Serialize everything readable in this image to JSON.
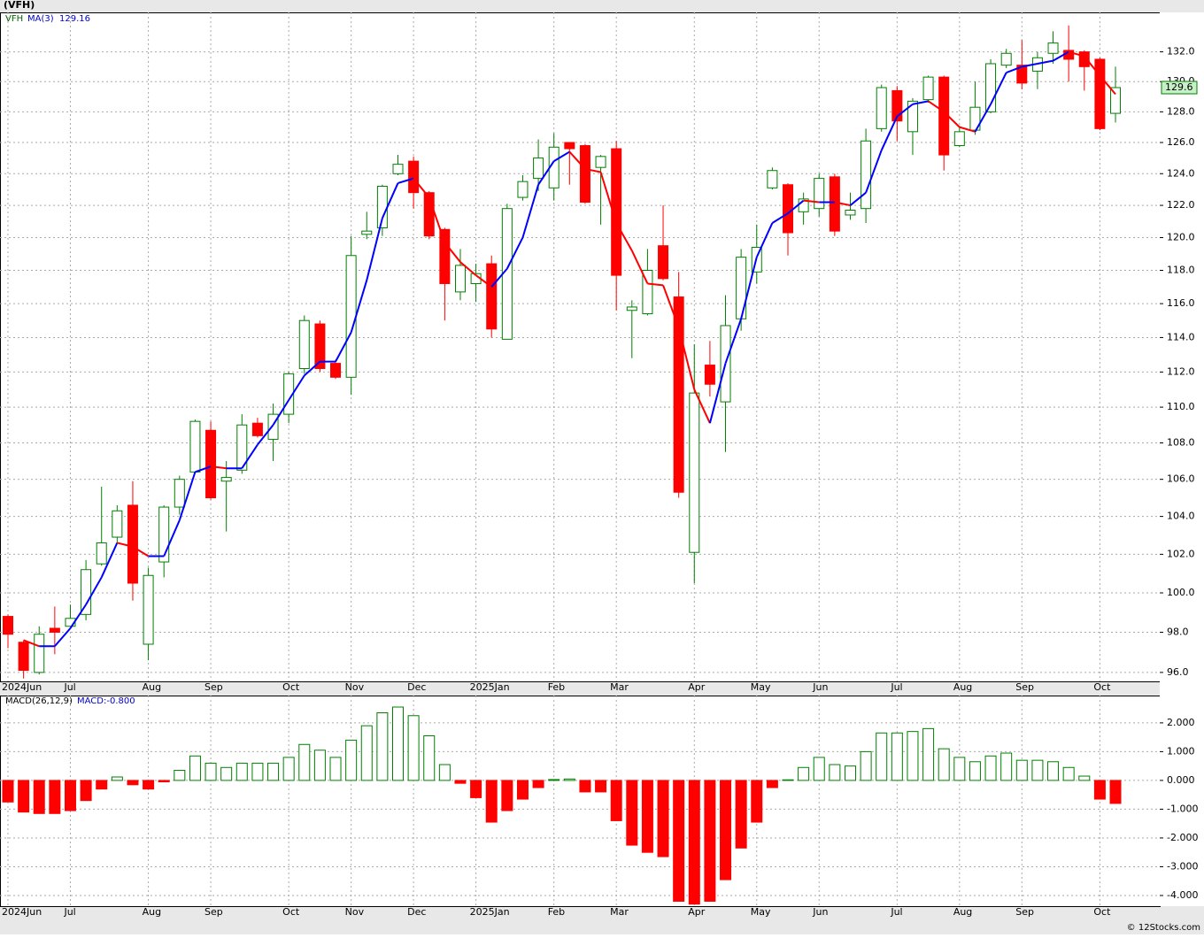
{
  "chart_data": [
    {
      "type": "candlestick",
      "title": "(VFH)",
      "log_scale": true,
      "grid": true,
      "ylim": [
        95.56,
        134.7
      ],
      "yticks": [
        {
          "value": 96,
          "label": "96.0"
        },
        {
          "value": 98,
          "label": "98.0"
        },
        {
          "value": 100,
          "label": "100.0"
        },
        {
          "value": 102,
          "label": "102.0"
        },
        {
          "value": 104,
          "label": "104.0"
        },
        {
          "value": 106,
          "label": "106.0"
        },
        {
          "value": 108,
          "label": "108.0"
        },
        {
          "value": 110,
          "label": "110.0"
        },
        {
          "value": 112,
          "label": "112.0"
        },
        {
          "value": 114,
          "label": "114.0"
        },
        {
          "value": 116,
          "label": "116.0"
        },
        {
          "value": 118,
          "label": "118.0"
        },
        {
          "value": 120,
          "label": "120.0"
        },
        {
          "value": 122,
          "label": "122.0"
        },
        {
          "value": 124,
          "label": "124.0"
        },
        {
          "value": 126,
          "label": "126.0"
        },
        {
          "value": 128,
          "label": "128.0"
        },
        {
          "value": 130,
          "label": "130.0"
        },
        {
          "value": 132,
          "label": "132.0"
        }
      ],
      "categories": [
        "2024Jun",
        null,
        null,
        null,
        "Jul",
        null,
        null,
        null,
        null,
        "Aug",
        null,
        null,
        null,
        "Sep",
        null,
        null,
        null,
        null,
        "Oct",
        null,
        null,
        null,
        "Nov",
        null,
        null,
        null,
        "Dec",
        null,
        null,
        null,
        "2025Jan",
        null,
        null,
        null,
        null,
        "Feb",
        null,
        null,
        null,
        "Mar",
        null,
        null,
        null,
        null,
        "Apr",
        null,
        null,
        null,
        "May",
        null,
        null,
        null,
        "Jun",
        null,
        null,
        null,
        null,
        "Jul",
        null,
        null,
        null,
        "Aug",
        null,
        null,
        null,
        "Sep",
        null,
        null,
        null,
        null,
        "Oct",
        null
      ],
      "series": [
        {
          "name": "VFH",
          "up_color": "#008000",
          "down_color": "#ff0000",
          "open": [
            98.8,
            97.5,
            96.0,
            98.2,
            98.3,
            98.9,
            101.5,
            102.9,
            104.6,
            97.4,
            101.6,
            104.5,
            106.4,
            108.7,
            105.9,
            106.5,
            109.1,
            108.2,
            109.6,
            112.2,
            114.8,
            112.5,
            111.7,
            120.2,
            120.6,
            124.0,
            124.8,
            122.8,
            120.5,
            116.7,
            117.2,
            118.4,
            113.9,
            122.5,
            123.7,
            123.1,
            126.0,
            125.8,
            124.4,
            125.6,
            115.6,
            115.4,
            119.5,
            116.4,
            102.1,
            112.4,
            110.3,
            115.1,
            117.9,
            123.1,
            123.3,
            121.6,
            121.8,
            123.8,
            121.4,
            121.8,
            126.9,
            129.4,
            126.7,
            128.8,
            130.3,
            125.8,
            126.8,
            128.0,
            131.1,
            131.1,
            130.7,
            131.9,
            132.1,
            132.0,
            131.5,
            127.9
          ],
          "high": [
            98.9,
            97.6,
            98.3,
            99.3,
            99.4,
            101.7,
            105.6,
            104.6,
            105.9,
            101.3,
            104.6,
            106.2,
            109.3,
            109.2,
            107.0,
            109.6,
            109.4,
            110.2,
            112.0,
            115.3,
            115.0,
            112.7,
            120.1,
            121.6,
            123.3,
            125.2,
            125.1,
            122.9,
            120.6,
            119.3,
            118.4,
            118.9,
            122.1,
            123.9,
            126.2,
            126.6,
            126.0,
            125.9,
            125.2,
            126.1,
            116.2,
            119.3,
            122.0,
            117.9,
            113.6,
            113.8,
            116.5,
            119.3,
            120.8,
            124.4,
            123.4,
            122.8,
            124.0,
            124.0,
            122.8,
            126.9,
            129.8,
            129.7,
            128.9,
            130.4,
            130.4,
            127.0,
            130.0,
            131.5,
            132.2,
            132.8,
            132.0,
            133.4,
            133.8,
            132.1,
            131.6,
            131.0
          ],
          "low": [
            97.2,
            95.7,
            95.9,
            96.9,
            98.3,
            98.6,
            101.4,
            102.6,
            99.6,
            96.6,
            100.8,
            104.1,
            106.4,
            104.9,
            103.2,
            106.3,
            108.3,
            107.0,
            109.1,
            111.9,
            112.0,
            111.6,
            110.7,
            119.9,
            120.1,
            123.9,
            121.8,
            119.9,
            115.0,
            116.2,
            116.1,
            114.0,
            113.9,
            122.3,
            122.9,
            122.3,
            123.3,
            122.1,
            120.8,
            115.6,
            112.8,
            115.3,
            117.4,
            105.0,
            100.5,
            110.6,
            107.5,
            114.4,
            117.2,
            123.0,
            118.9,
            120.8,
            121.3,
            120.1,
            121.1,
            120.9,
            126.7,
            126.1,
            125.2,
            128.6,
            124.2,
            125.7,
            126.5,
            127.9,
            130.9,
            129.5,
            129.5,
            131.2,
            130.0,
            129.4,
            126.8,
            127.3
          ],
          "close": [
            97.9,
            96.1,
            97.9,
            98.0,
            98.7,
            101.2,
            102.6,
            104.3,
            100.5,
            100.9,
            104.5,
            106.0,
            109.2,
            105.0,
            106.1,
            109.0,
            108.4,
            109.6,
            111.9,
            115.0,
            112.2,
            111.7,
            118.9,
            120.4,
            123.2,
            124.6,
            122.8,
            120.1,
            117.2,
            118.3,
            117.8,
            114.5,
            121.8,
            123.5,
            125.0,
            125.7,
            125.6,
            122.2,
            125.1,
            117.7,
            115.8,
            118.0,
            117.5,
            105.3,
            110.8,
            111.3,
            114.7,
            118.8,
            119.4,
            124.2,
            120.3,
            122.4,
            123.7,
            120.4,
            121.7,
            126.1,
            129.6,
            127.4,
            128.7,
            130.3,
            125.2,
            126.7,
            128.3,
            131.2,
            131.9,
            129.9,
            131.6,
            132.6,
            131.5,
            131.0,
            126.9,
            129.6
          ]
        }
      ],
      "ma": {
        "name": "MA(3)",
        "up_color": "#0000ff",
        "down_color": "#ff0000",
        "last": 129.16,
        "values": [
          null,
          97.6,
          97.3,
          97.3,
          98.2,
          99.4,
          100.8,
          102.6,
          102.4,
          101.9,
          101.9,
          103.8,
          106.4,
          106.7,
          106.6,
          106.6,
          107.9,
          109.0,
          110.4,
          111.8,
          112.6,
          112.6,
          114.3,
          117.4,
          121.2,
          123.4,
          123.7,
          122.5,
          119.7,
          118.5,
          117.7,
          117.0,
          118.1,
          120.0,
          123.3,
          124.8,
          125.4,
          124.3,
          124.1,
          120.9,
          119.2,
          117.2,
          117.1,
          114.6,
          111.0,
          109.1,
          112.5,
          115.1,
          118.8,
          120.9,
          121.5,
          122.3,
          122.2,
          122.2,
          122.0,
          122.8,
          125.5,
          127.7,
          128.5,
          128.7,
          128.0,
          127.0,
          126.7,
          128.5,
          130.6,
          131.0,
          131.2,
          131.4,
          132.0,
          131.7,
          130.4,
          129.16
        ]
      },
      "last_price": 129.6
    },
    {
      "type": "bar",
      "title": "MACD(26,12,9)",
      "value_text": "MACD:-0.800",
      "grid": true,
      "pos_color": "#008000",
      "neg_color": "#ff0000",
      "ylim": [
        -4.37,
        2.95
      ],
      "yticks": [
        {
          "value": 2,
          "label": "2.000"
        },
        {
          "value": 1,
          "label": "1.000"
        },
        {
          "value": 0,
          "label": "0.000"
        },
        {
          "value": -1,
          "label": "-1.000"
        },
        {
          "value": -2,
          "label": "-2.000"
        },
        {
          "value": -3,
          "label": "-3.000"
        },
        {
          "value": -4,
          "label": "-4.000"
        }
      ],
      "categories": [
        "2024Jun",
        null,
        null,
        null,
        "Jul",
        null,
        null,
        null,
        null,
        "Aug",
        null,
        null,
        null,
        "Sep",
        null,
        null,
        null,
        null,
        "Oct",
        null,
        null,
        null,
        "Nov",
        null,
        null,
        null,
        "Dec",
        null,
        null,
        null,
        "2025Jan",
        null,
        null,
        null,
        null,
        "Feb",
        null,
        null,
        null,
        "Mar",
        null,
        null,
        null,
        null,
        "Apr",
        null,
        null,
        null,
        "May",
        null,
        null,
        null,
        "Jun",
        null,
        null,
        null,
        null,
        "Jul",
        null,
        null,
        null,
        "Aug",
        null,
        null,
        null,
        "Sep",
        null,
        null,
        null,
        null,
        "Oct",
        null
      ],
      "values": [
        -0.75,
        -1.1,
        -1.15,
        -1.15,
        -1.05,
        -0.7,
        -0.3,
        0.12,
        -0.15,
        -0.3,
        -0.05,
        0.35,
        0.85,
        0.6,
        0.45,
        0.6,
        0.6,
        0.6,
        0.8,
        1.25,
        1.05,
        0.8,
        1.4,
        1.9,
        2.35,
        2.55,
        2.25,
        1.55,
        0.55,
        -0.1,
        -0.6,
        -1.45,
        -1.05,
        -0.65,
        -0.25,
        0.03,
        0.05,
        -0.4,
        -0.4,
        -1.4,
        -2.25,
        -2.5,
        -2.65,
        -4.2,
        -4.3,
        -4.2,
        -3.45,
        -2.35,
        -1.45,
        -0.25,
        0.02,
        0.45,
        0.8,
        0.55,
        0.5,
        1.0,
        1.65,
        1.65,
        1.7,
        1.8,
        1.1,
        0.8,
        0.65,
        0.85,
        0.95,
        0.7,
        0.7,
        0.65,
        0.45,
        0.15,
        -0.65,
        -0.8
      ]
    }
  ],
  "footer": "© 12Stocks.com"
}
